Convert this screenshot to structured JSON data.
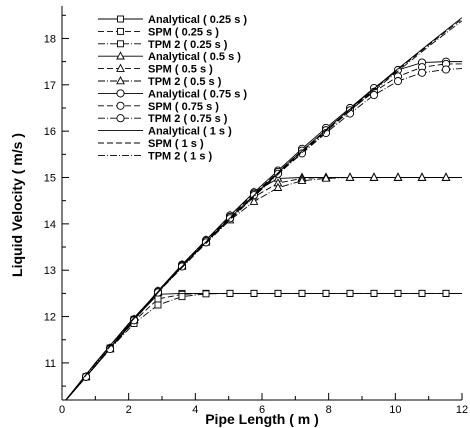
{
  "chart_data": {
    "type": "line",
    "xlabel": "Pipe Length ( m )",
    "ylabel": "Liquid Velocity ( m/s )",
    "xlim": [
      0,
      12
    ],
    "ylim": [
      10.2,
      18.7
    ],
    "xticks": [
      0,
      2,
      4,
      6,
      8,
      10,
      12
    ],
    "xtick_labels": [
      "0",
      "2",
      "4",
      "6",
      "8",
      "10",
      "12"
    ],
    "yticks": [
      11,
      12,
      13,
      14,
      15,
      16,
      17,
      18
    ],
    "ytick_labels": [
      "11",
      "12",
      "13",
      "14",
      "15",
      "16",
      "17",
      "18"
    ],
    "grid": false,
    "legend_position": "top-left",
    "series": [
      {
        "name": "Analytical ( 0.25 s )",
        "marker": "square",
        "dash": "solid",
        "x": [
          0,
          0.72,
          1.44,
          2.16,
          2.88,
          3.6,
          4.32,
          5.04,
          5.76,
          6.48,
          7.2,
          7.92,
          8.64,
          9.36,
          10.08,
          10.8,
          11.52,
          12
        ],
        "y": [
          10.1,
          10.7,
          11.32,
          11.94,
          12.48,
          12.5,
          12.5,
          12.5,
          12.5,
          12.5,
          12.5,
          12.5,
          12.5,
          12.5,
          12.5,
          12.5,
          12.5,
          12.5
        ]
      },
      {
        "name": "SPM ( 0.25 s )",
        "marker": "square",
        "dash": "dash",
        "x": [
          0,
          0.72,
          1.44,
          2.16,
          2.88,
          3.6,
          4.32,
          5.04,
          5.76,
          6.48,
          7.2,
          7.92,
          8.64,
          9.36,
          10.08,
          10.8,
          11.52,
          12
        ],
        "y": [
          10.1,
          10.7,
          11.31,
          11.9,
          12.38,
          12.48,
          12.5,
          12.5,
          12.5,
          12.5,
          12.5,
          12.5,
          12.5,
          12.5,
          12.5,
          12.5,
          12.5,
          12.5
        ]
      },
      {
        "name": "TPM 2 ( 0.25 s )",
        "marker": "square",
        "dash": "dashdot",
        "x": [
          0,
          0.72,
          1.44,
          2.16,
          2.88,
          3.6,
          4.32,
          5.04,
          5.76,
          6.48,
          7.2,
          7.92,
          8.64,
          9.36,
          10.08,
          10.8,
          11.52,
          12
        ],
        "y": [
          10.1,
          10.7,
          11.3,
          11.85,
          12.25,
          12.43,
          12.49,
          12.5,
          12.5,
          12.5,
          12.5,
          12.5,
          12.5,
          12.5,
          12.5,
          12.5,
          12.5,
          12.5
        ]
      },
      {
        "name": "Analytical ( 0.5 s )",
        "marker": "triangle",
        "dash": "solid",
        "x": [
          0,
          0.72,
          1.44,
          2.16,
          2.88,
          3.6,
          4.32,
          5.04,
          5.76,
          6.48,
          7.2,
          7.92,
          8.64,
          9.36,
          10.08,
          10.8,
          11.52,
          12
        ],
        "y": [
          10.1,
          10.7,
          11.32,
          11.94,
          12.55,
          13.12,
          13.65,
          14.18,
          14.68,
          14.98,
          15.0,
          15.0,
          15.0,
          15.0,
          15.0,
          15.0,
          15.0,
          15.0
        ]
      },
      {
        "name": "SPM ( 0.5 s )",
        "marker": "triangle",
        "dash": "dash",
        "x": [
          0,
          0.72,
          1.44,
          2.16,
          2.88,
          3.6,
          4.32,
          5.04,
          5.76,
          6.48,
          7.2,
          7.92,
          8.64,
          9.36,
          10.08,
          10.8,
          11.52,
          12
        ],
        "y": [
          10.1,
          10.7,
          11.31,
          11.93,
          12.53,
          13.1,
          13.63,
          14.14,
          14.58,
          14.88,
          14.98,
          15.0,
          15.0,
          15.0,
          15.0,
          15.0,
          15.0,
          15.0
        ]
      },
      {
        "name": "TPM 2 ( 0.5 s )",
        "marker": "triangle",
        "dash": "dashdot",
        "x": [
          0,
          0.72,
          1.44,
          2.16,
          2.88,
          3.6,
          4.32,
          5.04,
          5.76,
          6.48,
          7.2,
          7.92,
          8.64,
          9.36,
          10.08,
          10.8,
          11.52,
          12
        ],
        "y": [
          10.1,
          10.7,
          11.3,
          11.92,
          12.52,
          13.08,
          13.6,
          14.08,
          14.48,
          14.78,
          14.93,
          14.98,
          15.0,
          15.0,
          15.0,
          15.0,
          15.0,
          15.0
        ]
      },
      {
        "name": "Analytical ( 0.75 s )",
        "marker": "circle",
        "dash": "solid",
        "x": [
          0,
          0.72,
          1.44,
          2.16,
          2.88,
          3.6,
          4.32,
          5.04,
          5.76,
          6.48,
          7.2,
          7.92,
          8.64,
          9.36,
          10.08,
          10.8,
          11.52,
          12
        ],
        "y": [
          10.1,
          10.7,
          11.32,
          11.94,
          12.55,
          13.12,
          13.65,
          14.18,
          14.68,
          15.15,
          15.62,
          16.07,
          16.5,
          16.93,
          17.32,
          17.48,
          17.5,
          17.5
        ]
      },
      {
        "name": "SPM ( 0.75 s )",
        "marker": "circle",
        "dash": "dash",
        "x": [
          0,
          0.72,
          1.44,
          2.16,
          2.88,
          3.6,
          4.32,
          5.04,
          5.76,
          6.48,
          7.2,
          7.92,
          8.64,
          9.36,
          10.08,
          10.8,
          11.52,
          12
        ],
        "y": [
          10.1,
          10.7,
          11.31,
          11.93,
          12.53,
          13.1,
          13.63,
          14.15,
          14.65,
          15.12,
          15.58,
          16.02,
          16.45,
          16.85,
          17.18,
          17.38,
          17.45,
          17.45
        ]
      },
      {
        "name": "TPM 2 ( 0.75 s )",
        "marker": "circle",
        "dash": "dashdot",
        "x": [
          0,
          0.72,
          1.44,
          2.16,
          2.88,
          3.6,
          4.32,
          5.04,
          5.76,
          6.48,
          7.2,
          7.92,
          8.64,
          9.36,
          10.08,
          10.8,
          11.52,
          12
        ],
        "y": [
          10.1,
          10.7,
          11.3,
          11.92,
          12.52,
          13.08,
          13.6,
          14.12,
          14.62,
          15.08,
          15.52,
          15.96,
          16.38,
          16.78,
          17.08,
          17.26,
          17.33,
          17.35
        ]
      },
      {
        "name": "Analytical ( 1 s )",
        "marker": "none",
        "dash": "solid",
        "x": [
          0,
          1,
          2,
          3,
          4,
          5,
          6,
          7,
          8,
          9,
          10,
          11,
          12
        ],
        "y": [
          10.1,
          11.0,
          11.85,
          12.63,
          13.38,
          14.1,
          14.78,
          15.45,
          16.08,
          16.7,
          17.3,
          17.88,
          18.45
        ]
      },
      {
        "name": "SPM ( 1 s )",
        "marker": "none",
        "dash": "dash",
        "x": [
          0,
          1,
          2,
          3,
          4,
          5,
          6,
          7,
          8,
          9,
          10,
          11,
          12
        ],
        "y": [
          10.1,
          10.99,
          11.84,
          12.62,
          13.37,
          14.08,
          14.77,
          15.43,
          16.06,
          16.68,
          17.28,
          17.86,
          18.42
        ]
      },
      {
        "name": "TPM 2 ( 1 s )",
        "marker": "none",
        "dash": "dashdot",
        "x": [
          0,
          1,
          2,
          3,
          4,
          5,
          6,
          7,
          8,
          9,
          10,
          11,
          12
        ],
        "y": [
          10.1,
          10.98,
          11.83,
          12.61,
          13.35,
          14.06,
          14.75,
          15.41,
          16.04,
          16.66,
          17.25,
          17.83,
          18.38
        ]
      }
    ]
  }
}
